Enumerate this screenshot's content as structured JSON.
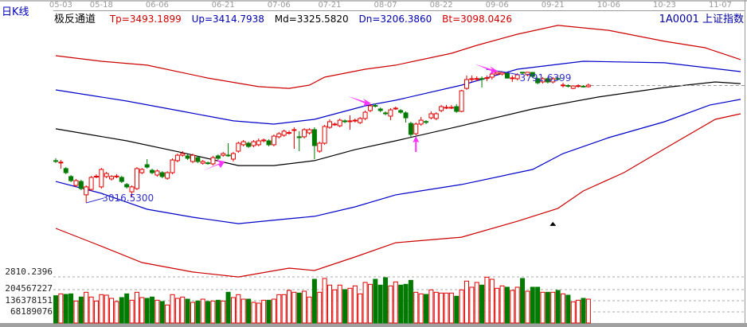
{
  "header": {
    "period_label": "日K线",
    "indicator_name": "极反通道",
    "legend": [
      {
        "key": "Tp",
        "text": "Tp=3493.1899",
        "color": "#d00000"
      },
      {
        "key": "Up",
        "text": "Up=3414.7938",
        "color": "#0000b0"
      },
      {
        "key": "Md",
        "text": "Md=3325.5820",
        "color": "#000000"
      },
      {
        "key": "Dn",
        "text": "Dn=3206.3860",
        "color": "#0000b0"
      },
      {
        "key": "Bt",
        "text": "Bt=3098.0426",
        "color": "#d00000"
      }
    ],
    "symbol": "1A0001  上证指数"
  },
  "chart_data": {
    "type": "candlestick",
    "x_tick_labels": [
      "05-03",
      "05-18",
      "06-06",
      "06-21",
      "07-06",
      "07-21",
      "08-07",
      "08-22",
      "09-06",
      "09-21",
      "10-06",
      "10-23",
      "11-07"
    ],
    "x_tick_bars": [
      1,
      9,
      20,
      33,
      44,
      54,
      65,
      76,
      87,
      98,
      109,
      120,
      131
    ],
    "y_axis_labels": {
      "price_bottom": "2810.2396",
      "volume": [
        "204567227",
        "136378151",
        "68189076"
      ]
    },
    "volume_ticks": [
      204567227,
      136378151,
      68189076
    ],
    "annotations": {
      "low_label": "3016.5300",
      "low_value": 3016.53,
      "low_bar": 6,
      "high_label": "3791.6399",
      "high_value": 3791.64,
      "high_bar": 88
    },
    "colors": {
      "up": "#e00000",
      "down": "#007a00",
      "band_outer": "#cc0000",
      "band_inner": "#0000c8",
      "mid": "#000000",
      "arrow": "#ff33ff"
    },
    "candles_ohlc": [
      [
        3266,
        3280,
        3252,
        3264
      ],
      [
        3255,
        3270,
        3219,
        3257
      ],
      [
        3219,
        3228,
        3186,
        3195
      ],
      [
        3172,
        3181,
        3139,
        3148
      ],
      [
        3120,
        3158,
        3110,
        3148
      ],
      [
        3143,
        3153,
        3092,
        3101
      ],
      [
        3064,
        3120,
        3016.53,
        3111
      ],
      [
        3096,
        3176,
        3087,
        3167
      ],
      [
        3170,
        3186,
        3162,
        3174
      ],
      [
        3111,
        3223,
        3101,
        3214
      ],
      [
        3172,
        3200,
        3162,
        3190
      ],
      [
        3158,
        3181,
        3148,
        3172
      ],
      [
        3172,
        3186,
        3162,
        3175
      ],
      [
        3167,
        3176,
        3134,
        3143
      ],
      [
        3125,
        3134,
        3101,
        3111
      ],
      [
        3082,
        3120,
        3054,
        3111
      ],
      [
        3101,
        3228,
        3092,
        3219
      ],
      [
        3195,
        3223,
        3186,
        3214
      ],
      [
        3242,
        3275,
        3219,
        3228
      ],
      [
        3209,
        3219,
        3186,
        3195
      ],
      [
        3181,
        3214,
        3172,
        3205
      ],
      [
        3195,
        3204,
        3162,
        3172
      ],
      [
        3162,
        3204,
        3153,
        3195
      ],
      [
        3195,
        3280,
        3186,
        3270
      ],
      [
        3266,
        3308,
        3256,
        3298
      ],
      [
        3298,
        3322,
        3289,
        3308
      ],
      [
        3294,
        3303,
        3270,
        3280
      ],
      [
        3261,
        3308,
        3251,
        3298
      ],
      [
        3284,
        3294,
        3251,
        3261
      ],
      [
        3251,
        3270,
        3242,
        3261
      ],
      [
        3253,
        3261,
        3242,
        3249
      ],
      [
        3247,
        3294,
        3237,
        3284
      ],
      [
        3294,
        3303,
        3270,
        3280
      ],
      [
        3298,
        3317,
        3289,
        3308
      ],
      [
        3299,
        3369,
        3289,
        3297
      ],
      [
        3275,
        3317,
        3261,
        3308
      ],
      [
        3322,
        3378,
        3312,
        3369
      ],
      [
        3360,
        3388,
        3350,
        3378
      ],
      [
        3369,
        3378,
        3341,
        3350
      ],
      [
        3355,
        3388,
        3345,
        3378
      ],
      [
        3360,
        3397,
        3350,
        3383
      ],
      [
        3383,
        3397,
        3374,
        3388
      ],
      [
        3383,
        3392,
        3350,
        3360
      ],
      [
        3360,
        3420,
        3350,
        3411
      ],
      [
        3407,
        3435,
        3397,
        3425
      ],
      [
        3416,
        3449,
        3407,
        3440
      ],
      [
        3428,
        3444,
        3420,
        3432
      ],
      [
        3447,
        3463,
        3336,
        3449
      ],
      [
        3407,
        3440,
        3322,
        3403
      ],
      [
        3407,
        3458,
        3397,
        3449
      ],
      [
        3430,
        3458,
        3420,
        3449
      ],
      [
        3449,
        3463,
        3275,
        3355
      ],
      [
        3322,
        3378,
        3312,
        3369
      ],
      [
        3369,
        3477,
        3360,
        3468
      ],
      [
        3463,
        3510,
        3454,
        3496
      ],
      [
        3478,
        3491,
        3472,
        3482
      ],
      [
        3472,
        3515,
        3463,
        3505
      ],
      [
        3501,
        3510,
        3487,
        3496
      ],
      [
        3498,
        3534,
        3449,
        3501
      ],
      [
        3501,
        3515,
        3491,
        3505
      ],
      [
        3491,
        3524,
        3482,
        3515
      ],
      [
        3515,
        3562,
        3505,
        3552
      ],
      [
        3562,
        3600,
        3552,
        3590
      ],
      [
        3592,
        3604,
        3580,
        3588
      ],
      [
        3571,
        3580,
        3552,
        3562
      ],
      [
        3548,
        3557,
        3534,
        3543
      ],
      [
        3529,
        3576,
        3505,
        3566
      ],
      [
        3572,
        3585,
        3566,
        3576
      ],
      [
        3562,
        3571,
        3543,
        3552
      ],
      [
        3548,
        3557,
        3491,
        3519
      ],
      [
        3486,
        3496,
        3407,
        3421
      ],
      [
        3425,
        3491,
        3416,
        3482
      ],
      [
        3482,
        3524,
        3472,
        3505
      ],
      [
        3497,
        3505,
        3482,
        3495
      ],
      [
        3519,
        3557,
        3510,
        3543
      ],
      [
        3515,
        3552,
        3505,
        3543
      ],
      [
        3562,
        3595,
        3552,
        3585
      ],
      [
        3579,
        3595,
        3571,
        3581
      ],
      [
        3579,
        3595,
        3571,
        3581
      ],
      [
        3585,
        3600,
        3548,
        3557
      ],
      [
        3557,
        3684,
        3552,
        3679
      ],
      [
        3693,
        3769,
        3684,
        3745
      ],
      [
        3748,
        3769,
        3731,
        3750
      ],
      [
        3748,
        3764,
        3736,
        3751
      ],
      [
        3751,
        3764,
        3698,
        3748
      ],
      [
        3752,
        3769,
        3736,
        3756
      ],
      [
        3759,
        3787,
        3745,
        3778
      ],
      [
        3778,
        3790,
        3773,
        3787
      ],
      [
        3778,
        3791.64,
        3769,
        3787
      ],
      [
        3783,
        3787,
        3750,
        3754
      ],
      [
        3753,
        3769,
        3731,
        3755
      ],
      [
        3750,
        3783,
        3740,
        3773
      ],
      [
        3788,
        3790,
        3778,
        3786
      ],
      [
        3773,
        3790,
        3764,
        3788
      ],
      [
        3787,
        3790,
        3754,
        3764
      ],
      [
        3750,
        3755,
        3717,
        3726
      ],
      [
        3731,
        3760,
        3722,
        3750
      ],
      [
        3750,
        3760,
        3722,
        3731
      ],
      [
        3731,
        3760,
        3722,
        3750
      ],
      [
        3751,
        3760,
        3740,
        3748
      ],
      [
        3710,
        3726,
        3698,
        3713
      ],
      [
        3710,
        3717,
        3698,
        3707
      ],
      [
        3693,
        3712,
        3688,
        3707
      ],
      [
        3706,
        3717,
        3698,
        3709
      ],
      [
        3706,
        3712,
        3698,
        3703
      ],
      [
        3703,
        3722,
        3698,
        3712
      ]
    ],
    "volume": [
      167200000,
      178600000,
      175300000,
      178600000,
      134800000,
      159100000,
      188300000,
      159100000,
      134800000,
      173700000,
      170500000,
      151000000,
      131500000,
      155900000,
      178600000,
      139600000,
      188300000,
      155900000,
      151000000,
      159100000,
      139600000,
      131500000,
      110400000,
      173700000,
      151000000,
      159100000,
      146100000,
      126600000,
      134800000,
      146100000,
      131500000,
      134800000,
      139600000,
      134800000,
      188300000,
      155900000,
      173700000,
      146100000,
      146100000,
      126600000,
      121800000,
      139600000,
      139600000,
      146100000,
      173700000,
      173700000,
      199700000,
      188300000,
      183500000,
      194800000,
      159100000,
      267900000,
      188300000,
      272800000,
      232200000,
      202900000,
      232200000,
      204600000,
      212700000,
      227300000,
      178600000,
      248400000,
      237000000,
      267900000,
      232200000,
      277600000,
      227300000,
      251700000,
      232200000,
      237000000,
      261400000,
      188300000,
      178600000,
      175300000,
      202900000,
      188300000,
      183500000,
      183500000,
      183500000,
      164000000,
      202900000,
      256500000,
      219200000,
      248400000,
      232200000,
      280900000,
      267900000,
      212700000,
      227300000,
      219200000,
      199700000,
      219200000,
      272800000,
      194800000,
      219200000,
      219200000,
      188300000,
      188300000,
      188300000,
      199700000,
      178600000,
      170500000,
      129900000,
      139600000,
      151000000,
      146100000
    ],
    "bands": {
      "Tp": [
        [
          0,
          3886
        ],
        [
          9,
          3853
        ],
        [
          18,
          3830
        ],
        [
          30,
          3754
        ],
        [
          40,
          3703
        ],
        [
          46,
          3693
        ],
        [
          50,
          3712
        ],
        [
          53,
          3759
        ],
        [
          61,
          3806
        ],
        [
          67,
          3830
        ],
        [
          78,
          3900
        ],
        [
          83,
          3947
        ],
        [
          91,
          4013
        ],
        [
          99,
          4065
        ],
        [
          109,
          4036
        ],
        [
          120,
          3971
        ],
        [
          128,
          3933
        ],
        [
          135,
          3863
        ]
      ],
      "Up": [
        [
          0,
          3684
        ],
        [
          14,
          3618
        ],
        [
          25,
          3557
        ],
        [
          35,
          3501
        ],
        [
          43,
          3482
        ],
        [
          51,
          3510
        ],
        [
          61,
          3590
        ],
        [
          67,
          3623
        ],
        [
          80,
          3712
        ],
        [
          91,
          3806
        ],
        [
          104,
          3853
        ],
        [
          120,
          3844
        ],
        [
          135,
          3792
        ]
      ],
      "Md": [
        [
          0,
          3454
        ],
        [
          14,
          3383
        ],
        [
          25,
          3313
        ],
        [
          36,
          3237
        ],
        [
          43,
          3237
        ],
        [
          51,
          3266
        ],
        [
          59,
          3331
        ],
        [
          67,
          3383
        ],
        [
          80,
          3472
        ],
        [
          94,
          3571
        ],
        [
          107,
          3642
        ],
        [
          120,
          3698
        ],
        [
          130,
          3731
        ],
        [
          135,
          3721
        ]
      ],
      "Dn": [
        [
          0,
          3143
        ],
        [
          9,
          3073
        ],
        [
          18,
          2979
        ],
        [
          27,
          2932
        ],
        [
          36,
          2894
        ],
        [
          46,
          2923
        ],
        [
          51,
          2937
        ],
        [
          59,
          2993
        ],
        [
          67,
          3064
        ],
        [
          80,
          3125
        ],
        [
          94,
          3214
        ],
        [
          100,
          3308
        ],
        [
          109,
          3402
        ],
        [
          120,
          3496
        ],
        [
          129,
          3595
        ],
        [
          135,
          3628
        ]
      ],
      "Bt": [
        [
          0,
          2866
        ],
        [
          8,
          2772
        ],
        [
          17,
          2664
        ],
        [
          27,
          2608
        ],
        [
          36,
          2579
        ],
        [
          46,
          2631
        ],
        [
          51,
          2617
        ],
        [
          59,
          2697
        ],
        [
          67,
          2781
        ],
        [
          80,
          2814
        ],
        [
          91,
          2908
        ],
        [
          99,
          2984
        ],
        [
          104,
          3087
        ],
        [
          112,
          3195
        ],
        [
          120,
          3336
        ],
        [
          130,
          3510
        ],
        [
          135,
          3543
        ]
      ]
    },
    "reference_line_value": 3710,
    "signal_arrows": [
      {
        "bar": 33,
        "direction": "up-right"
      },
      {
        "bar": 62,
        "direction": "down-right"
      },
      {
        "bar": 71,
        "direction": "up"
      },
      {
        "bar": 87,
        "direction": "down-right"
      }
    ],
    "marker_triangle": {
      "bar": 98,
      "value": 2895
    }
  }
}
